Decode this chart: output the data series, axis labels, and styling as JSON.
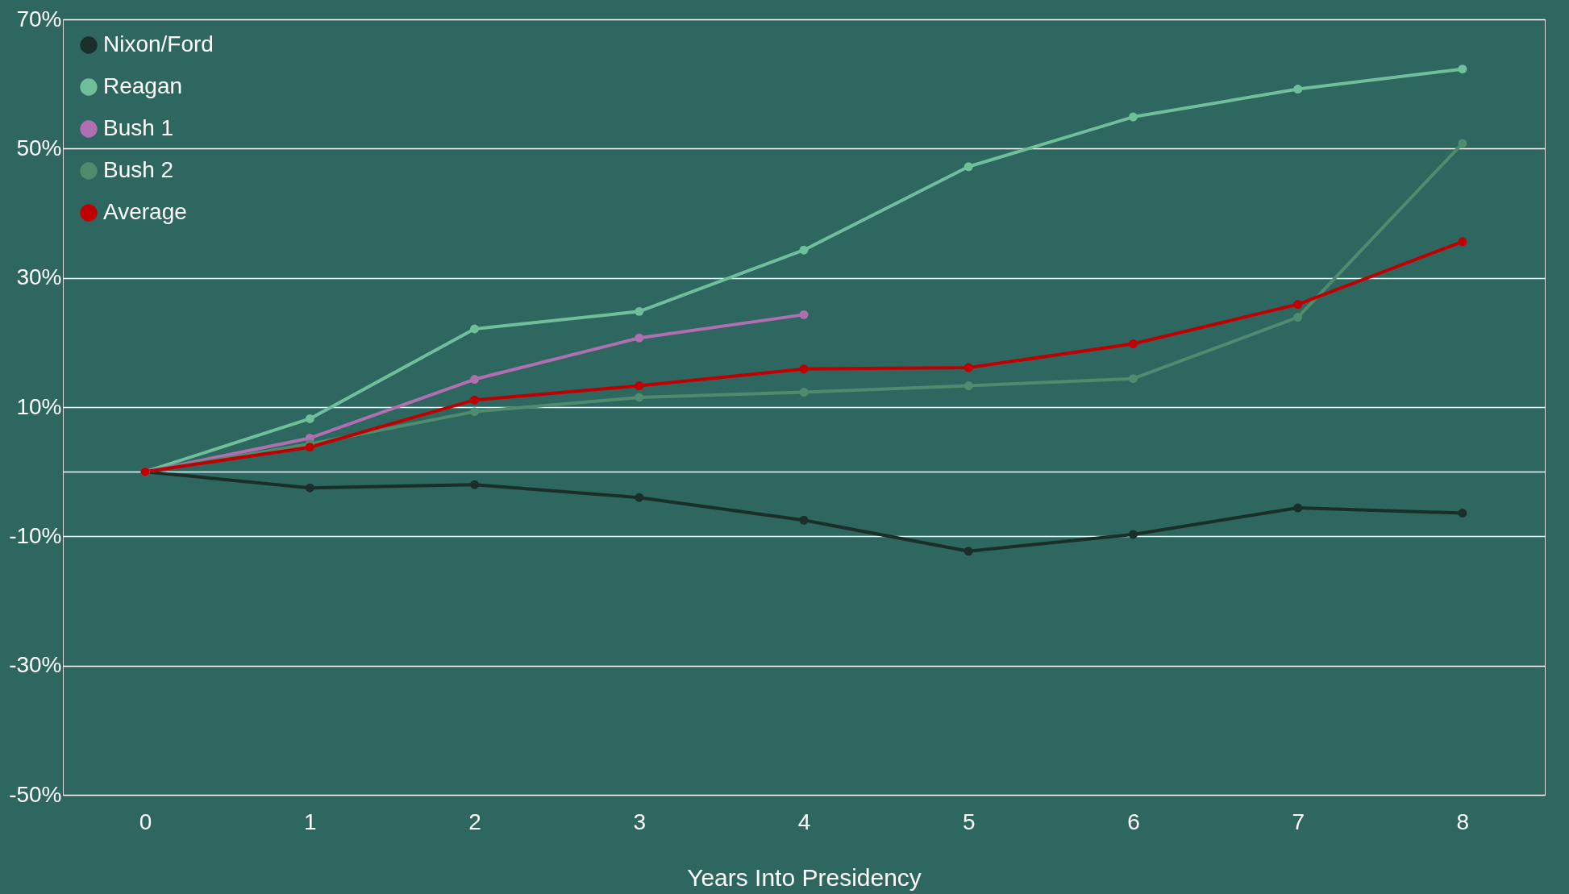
{
  "chart_data": {
    "type": "line",
    "xlabel": "Years Into Presidency",
    "x": [
      0,
      1,
      2,
      3,
      4,
      5,
      6,
      7,
      8
    ],
    "series": [
      {
        "name": "Nixon/Ford",
        "color": "#1a2e2a",
        "values": [
          0,
          -2.5,
          -2,
          -4,
          -7.5,
          -12.3,
          -9.7,
          -5.6,
          -6.4
        ]
      },
      {
        "name": "Reagan",
        "color": "#6fbf9a",
        "values": [
          0,
          8.2,
          22.1,
          24.8,
          34.3,
          47.2,
          54.9,
          59.2,
          62.3
        ]
      },
      {
        "name": "Bush 1",
        "color": "#b06fb0",
        "values": [
          0,
          5.2,
          14.3,
          20.7,
          24.3,
          null,
          null,
          null,
          null
        ]
      },
      {
        "name": "Bush 2",
        "color": "#4f8c6e",
        "values": [
          0,
          4.3,
          9.3,
          11.5,
          12.3,
          13.3,
          14.4,
          23.9,
          50.8
        ]
      },
      {
        "name": "Average",
        "color": "#c00000",
        "values": [
          0,
          3.8,
          11.1,
          13.3,
          15.9,
          16.1,
          19.8,
          25.9,
          35.6
        ]
      }
    ],
    "xlim": [
      -0.5,
      8.5
    ],
    "xticks": [
      0,
      1,
      2,
      3,
      4,
      5,
      6,
      7,
      8
    ],
    "ylim": [
      -50,
      70
    ],
    "yticks": [
      {
        "value": -50,
        "label": "-50%"
      },
      {
        "value": -30,
        "label": "-30%"
      },
      {
        "value": -10,
        "label": "-10%"
      },
      {
        "value": 0,
        "label": null
      },
      {
        "value": 10,
        "label": "10%"
      },
      {
        "value": 30,
        "label": "30%"
      },
      {
        "value": 50,
        "label": "50%"
      },
      {
        "value": 70,
        "label": "70%"
      }
    ],
    "grid": "y",
    "legend": "top left",
    "marker": "circle"
  }
}
